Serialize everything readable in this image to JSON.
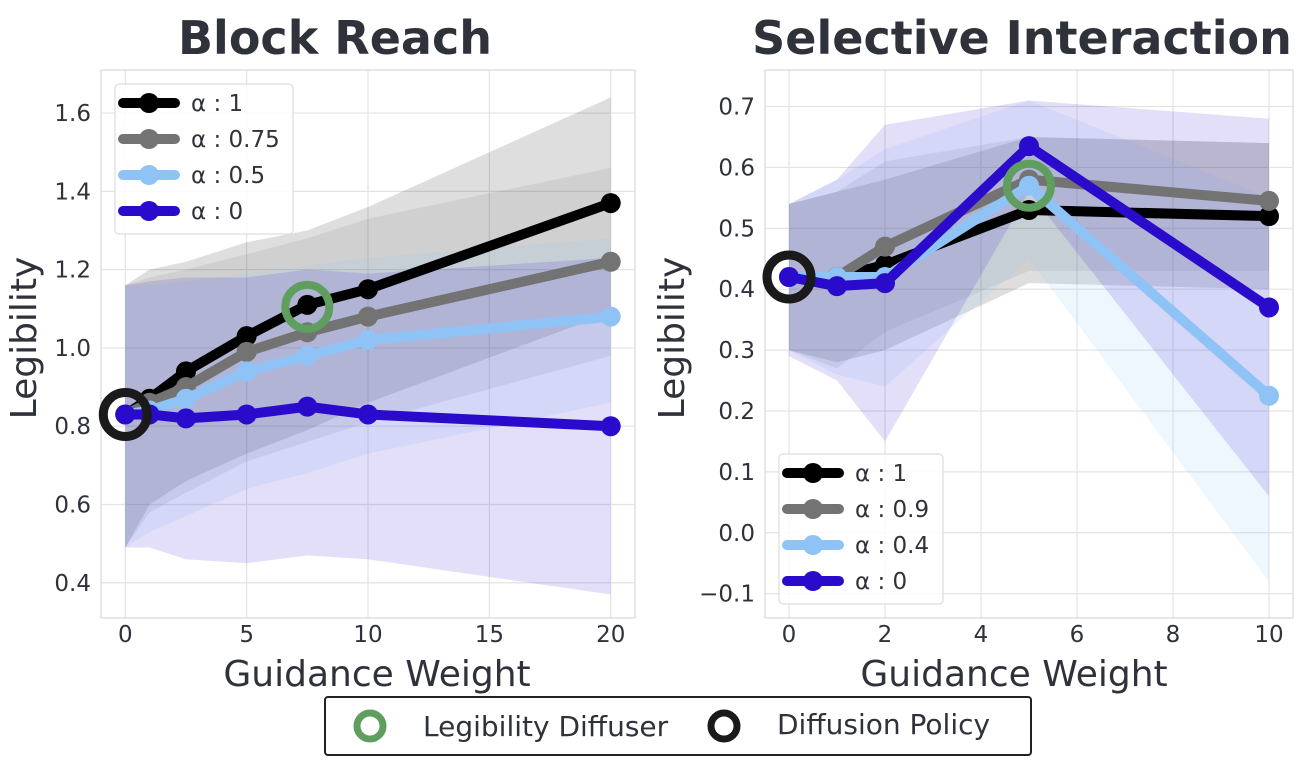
{
  "chart_data": [
    {
      "type": "line",
      "title": "Block Reach",
      "xlabel": "Guidance Weight",
      "ylabel": "Legibility",
      "xlim": [
        -1,
        21
      ],
      "ylim": [
        0.31,
        1.71
      ],
      "xticks": [
        0,
        5,
        10,
        15,
        20
      ],
      "yticks": [
        0.4,
        0.6,
        0.8,
        1.0,
        1.2,
        1.4,
        1.6
      ],
      "xtick_labels": [
        "0",
        "5",
        "10",
        "15",
        "20"
      ],
      "ytick_labels": [
        "0.4",
        "0.6",
        "0.8",
        "1.0",
        "1.2",
        "1.4",
        "1.6"
      ],
      "grid": true,
      "legend_position": "top-left",
      "x": [
        0,
        1,
        2.5,
        5,
        7.5,
        10,
        20
      ],
      "series": [
        {
          "name": "1",
          "color": "#000000",
          "values": [
            0.83,
            0.87,
            0.94,
            1.03,
            1.11,
            1.15,
            1.37
          ],
          "lower": [
            0.49,
            0.6,
            0.66,
            0.73,
            0.79,
            0.86,
            1.09
          ],
          "upper": [
            1.16,
            1.2,
            1.22,
            1.27,
            1.3,
            1.36,
            1.64
          ]
        },
        {
          "name": "0.75",
          "color": "#737373",
          "values": [
            0.83,
            0.86,
            0.9,
            0.99,
            1.04,
            1.08,
            1.22
          ],
          "lower": [
            0.49,
            0.58,
            0.63,
            0.71,
            0.76,
            0.81,
            0.98
          ],
          "upper": [
            1.16,
            1.18,
            1.2,
            1.24,
            1.28,
            1.33,
            1.46
          ]
        },
        {
          "name": "0.5",
          "color": "#8fc3f5",
          "values": [
            0.83,
            0.84,
            0.87,
            0.94,
            0.98,
            1.02,
            1.08
          ],
          "lower": [
            0.49,
            0.53,
            0.57,
            0.64,
            0.68,
            0.73,
            0.86
          ],
          "upper": [
            1.16,
            1.16,
            1.17,
            1.19,
            1.21,
            1.23,
            1.28
          ]
        },
        {
          "name": "0",
          "color": "#2a0bcc",
          "values": [
            0.83,
            0.83,
            0.82,
            0.83,
            0.85,
            0.83,
            0.8
          ],
          "lower": [
            0.49,
            0.49,
            0.46,
            0.45,
            0.47,
            0.46,
            0.37
          ],
          "upper": [
            1.16,
            1.17,
            1.18,
            1.18,
            1.2,
            1.19,
            1.23
          ]
        }
      ],
      "legibility_diffuser_point": {
        "x": 7.5,
        "y": 1.105
      },
      "diffusion_policy_point": {
        "x": 0,
        "y": 0.83
      }
    },
    {
      "type": "line",
      "title": "Selective Interaction",
      "xlabel": "Guidance Weight",
      "ylabel": "Legibility",
      "xlim": [
        -0.5,
        10.5
      ],
      "ylim": [
        -0.14,
        0.76
      ],
      "xticks": [
        0,
        2,
        4,
        6,
        8,
        10
      ],
      "yticks": [
        -0.1,
        0.0,
        0.1,
        0.2,
        0.3,
        0.4,
        0.5,
        0.6,
        0.7
      ],
      "xtick_labels": [
        "0",
        "2",
        "4",
        "6",
        "8",
        "10"
      ],
      "ytick_labels": [
        "−0.1",
        "0.0",
        "0.1",
        "0.2",
        "0.3",
        "0.4",
        "0.5",
        "0.6",
        "0.7"
      ],
      "grid": true,
      "legend_position": "bottom-left",
      "x": [
        0,
        1,
        2,
        5,
        10
      ],
      "series": [
        {
          "name": "1",
          "color": "#000000",
          "values": [
            0.42,
            0.42,
            0.44,
            0.53,
            0.52
          ],
          "lower": [
            0.3,
            0.28,
            0.3,
            0.41,
            0.4
          ],
          "upper": [
            0.54,
            0.56,
            0.58,
            0.65,
            0.64
          ]
        },
        {
          "name": "0.9",
          "color": "#737373",
          "values": [
            0.42,
            0.42,
            0.47,
            0.58,
            0.545
          ],
          "lower": [
            0.3,
            0.27,
            0.33,
            0.43,
            0.43
          ],
          "upper": [
            0.54,
            0.56,
            0.61,
            0.65,
            0.64
          ]
        },
        {
          "name": "0.4",
          "color": "#8fc3f5",
          "values": [
            0.42,
            0.42,
            0.42,
            0.57,
            0.225
          ],
          "lower": [
            0.3,
            0.26,
            0.24,
            0.45,
            -0.08
          ],
          "upper": [
            0.54,
            0.58,
            0.63,
            0.71,
            0.55
          ]
        },
        {
          "name": "0",
          "color": "#2a0bcc",
          "values": [
            0.42,
            0.405,
            0.41,
            0.635,
            0.37
          ],
          "lower": [
            0.29,
            0.25,
            0.15,
            0.56,
            0.06
          ],
          "upper": [
            0.54,
            0.58,
            0.67,
            0.71,
            0.68
          ]
        }
      ],
      "legibility_diffuser_point": {
        "x": 5,
        "y": 0.57
      },
      "diffusion_policy_point": {
        "x": 0,
        "y": 0.42
      }
    }
  ],
  "legend_prefix": "α : ",
  "bottom_legend": {
    "legibility_diffuser": "Legibility Diffuser",
    "diffusion_policy": "Diffusion Policy",
    "legibility_diffuser_color": "#5f9e5f",
    "diffusion_policy_color": "#1a1a1a"
  }
}
